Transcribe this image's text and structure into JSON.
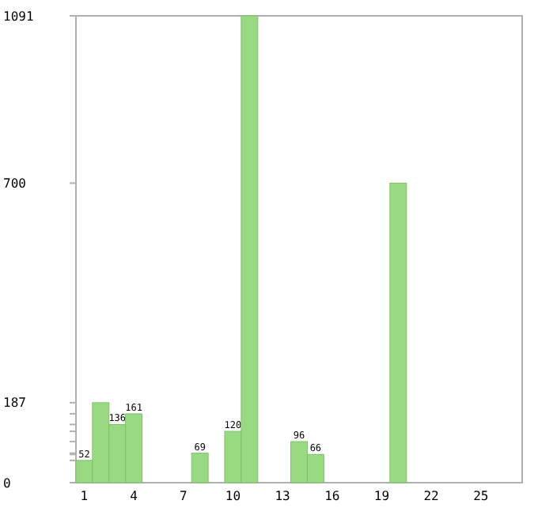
{
  "chart_data": {
    "type": "bar",
    "categories": [
      "1",
      null,
      null,
      "4",
      null,
      null,
      "7",
      null,
      null,
      "10",
      null,
      null,
      "13",
      null,
      null,
      "16",
      null,
      null,
      "19",
      null,
      null,
      "22",
      null,
      null,
      "25",
      null,
      null
    ],
    "values": [
      52,
      187,
      136,
      161,
      0,
      0,
      0,
      69,
      0,
      120,
      1091,
      0,
      0,
      96,
      66,
      0,
      0,
      0,
      0,
      700,
      0,
      0,
      0,
      0,
      0,
      0,
      0
    ],
    "value_labels": [
      "52",
      null,
      "136",
      "161",
      null,
      null,
      null,
      "69",
      null,
      "120",
      null,
      null,
      null,
      "96",
      "66",
      null,
      null,
      null,
      null,
      null,
      null,
      null,
      null,
      null,
      null,
      null,
      null
    ],
    "color": "#98da82",
    "ylim": [
      0,
      1091
    ],
    "yticks": [
      0,
      {
        "value": 52,
        "label": null
      },
      {
        "value": 66,
        "label": null
      },
      {
        "value": 69,
        "label": null
      },
      {
        "value": 96,
        "label": null
      },
      {
        "value": 120,
        "label": null
      },
      {
        "value": 136,
        "label": null
      },
      {
        "value": 161,
        "label": null
      },
      187,
      700,
      1091
    ],
    "grid": false
  }
}
